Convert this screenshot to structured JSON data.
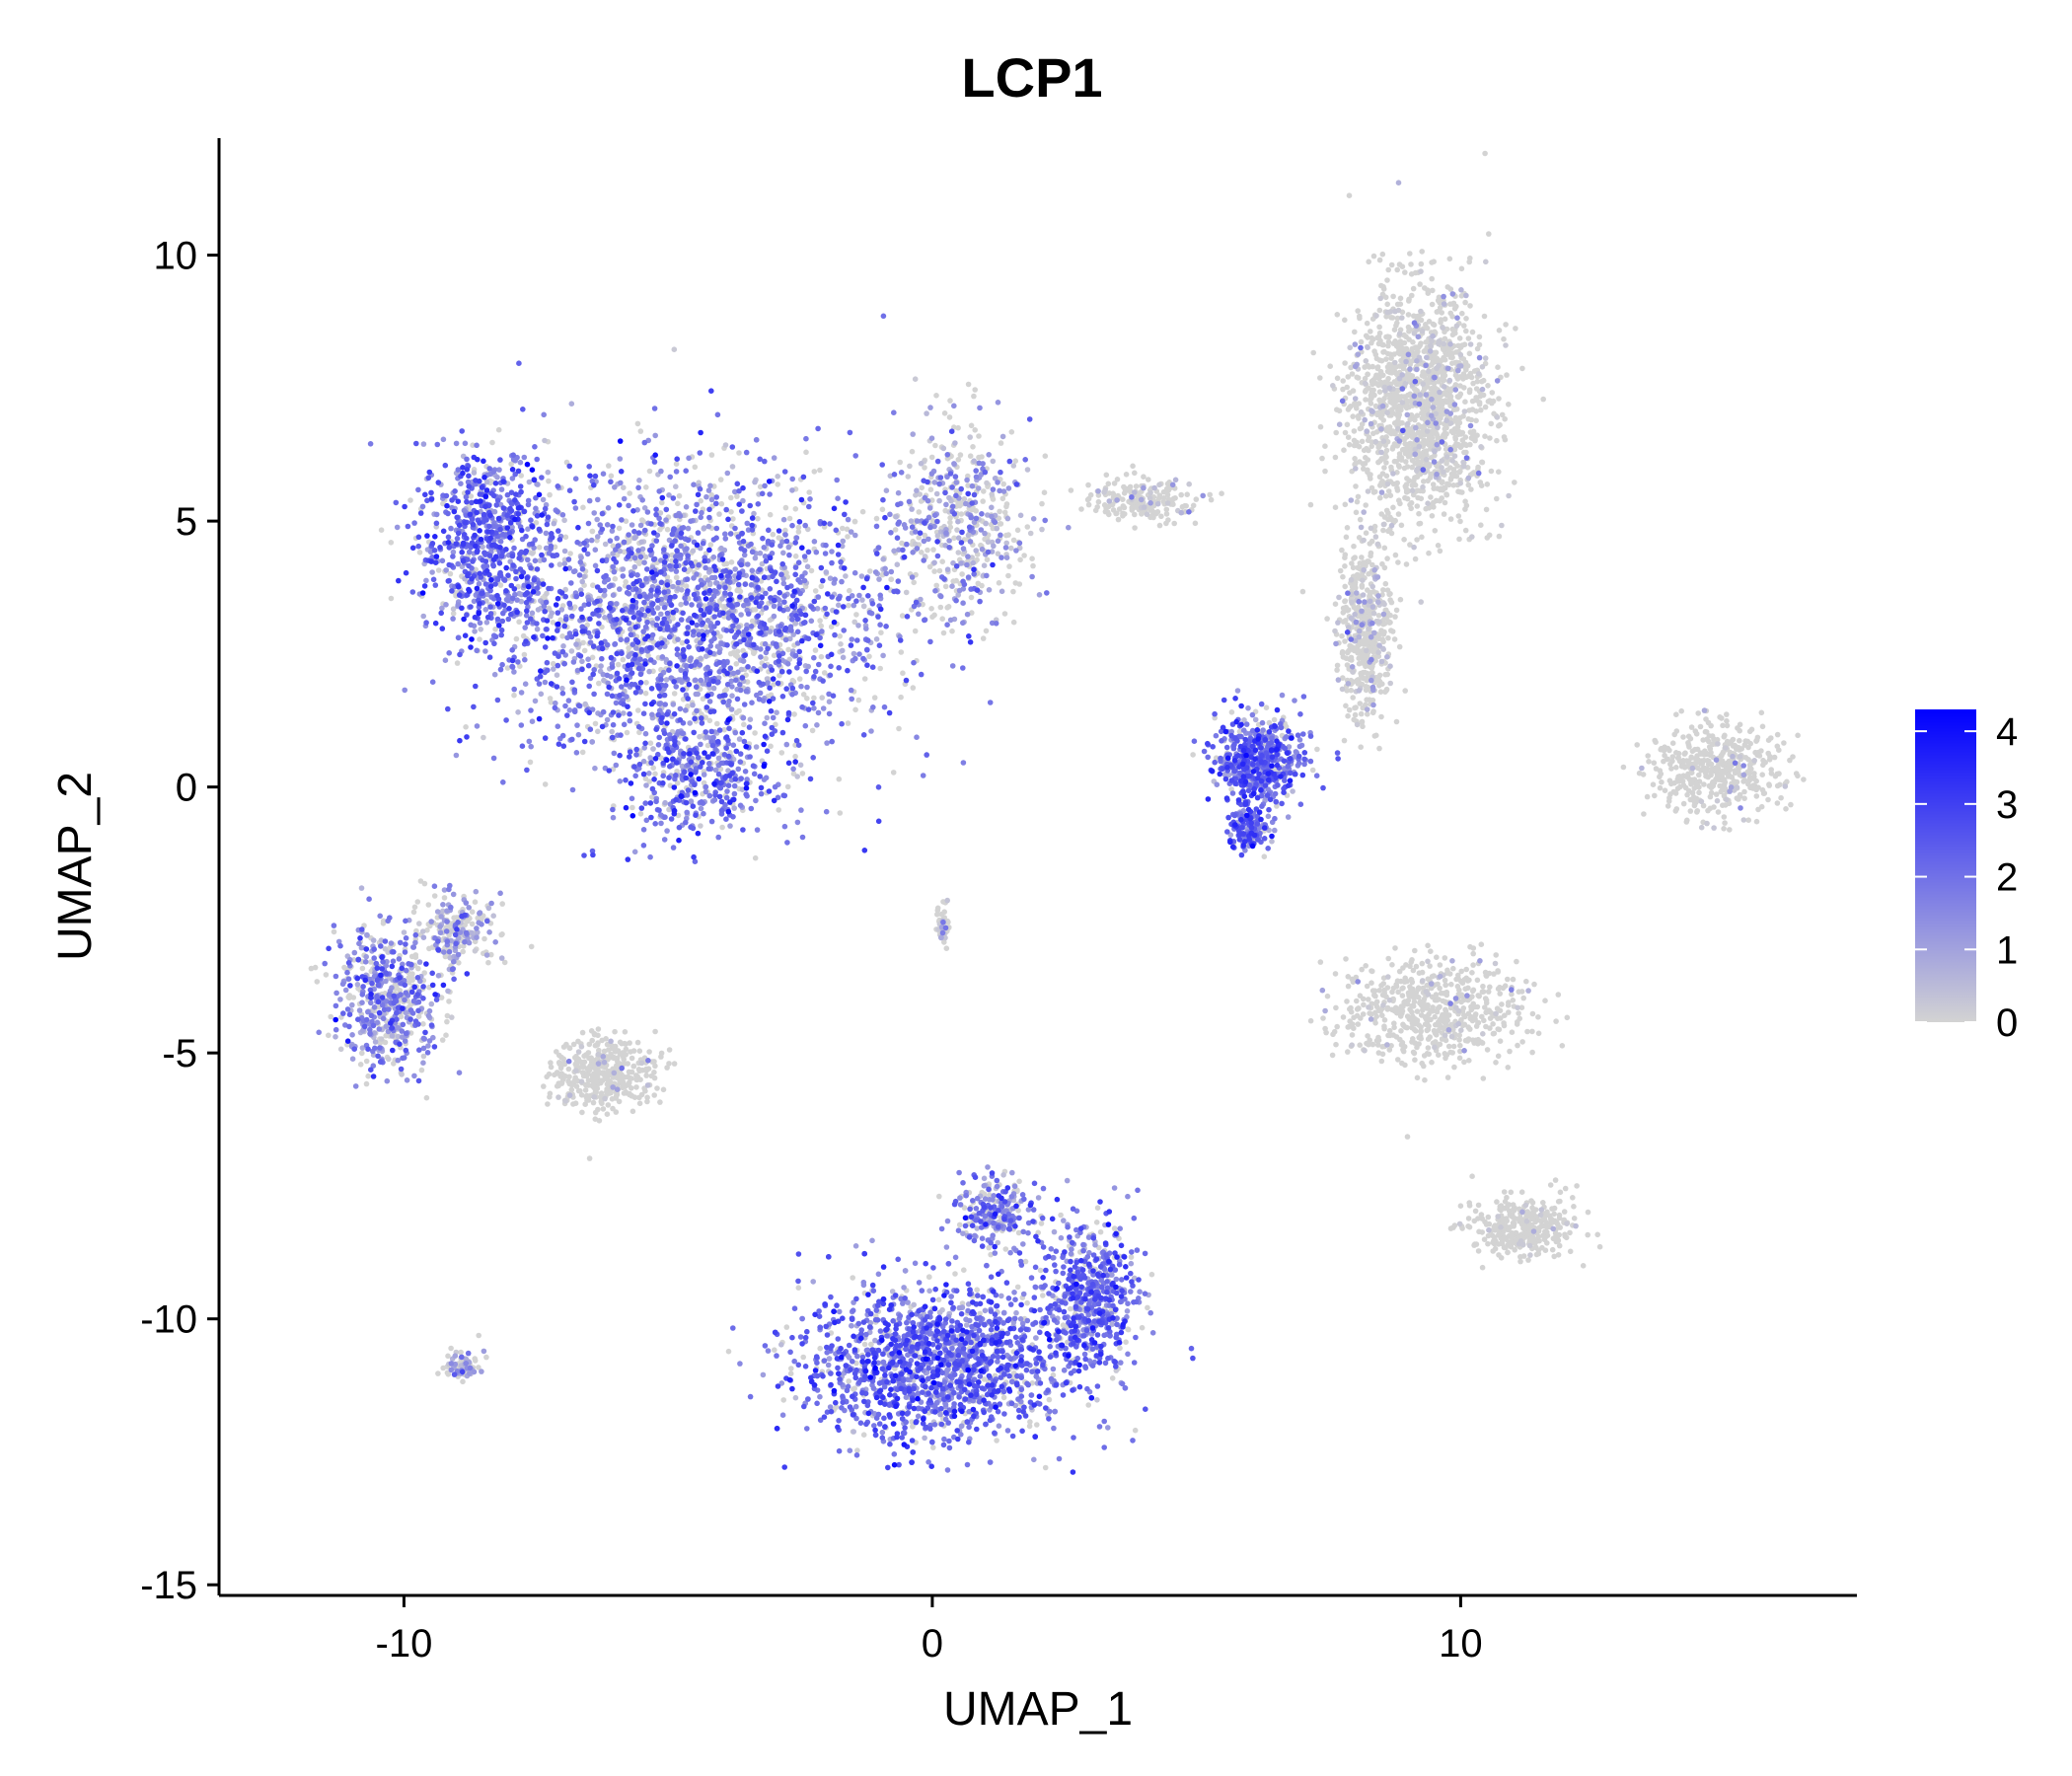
{
  "chart_data": {
    "type": "scatter",
    "title": "LCP1",
    "xlabel": "UMAP_1",
    "ylabel": "UMAP_2",
    "xlim": [
      -13.5,
      17.5
    ],
    "ylim": [
      -15.2,
      12.2
    ],
    "x_ticks": [
      -10,
      0,
      10
    ],
    "x_tick_labels": [
      "-10",
      "0",
      "10"
    ],
    "y_ticks": [
      10,
      5,
      0,
      -5,
      -10,
      -15
    ],
    "y_tick_labels": [
      "10",
      "5",
      "0",
      "-5",
      "-10",
      "-15"
    ],
    "grid": false,
    "legend": {
      "type": "colorbar",
      "placement": "right",
      "range": [
        0,
        4.3
      ],
      "ticks": [
        4,
        3,
        2,
        1,
        0
      ],
      "tick_labels": [
        "4",
        "3",
        "2",
        "1",
        "0"
      ],
      "low_color": "#d3d3d3",
      "high_color": "#0000ff"
    },
    "point_color_low": "#d3d3d3",
    "point_color_high": "#0000ff",
    "clusters": [
      {
        "name": "large upper-left cluster",
        "cx": -4.5,
        "cy": 3.2,
        "sx": 3.4,
        "sy": 2.4,
        "expr": 1.8,
        "n": 2600
      },
      {
        "name": "upper-left cluster left lobe",
        "cx": -8.4,
        "cy": 4.6,
        "sx": 1.2,
        "sy": 1.6,
        "expr": 2.2,
        "n": 700
      },
      {
        "name": "upper-left cluster lower tip",
        "cx": -4.4,
        "cy": 0.2,
        "sx": 1.3,
        "sy": 1.0,
        "expr": 2.0,
        "n": 400
      },
      {
        "name": "upper-left cluster right edge",
        "cx": 0.5,
        "cy": 5.0,
        "sx": 1.2,
        "sy": 1.6,
        "expr": 1.2,
        "n": 500
      },
      {
        "name": "upper-right tall cluster",
        "cx": 9.2,
        "cy": 7.2,
        "sx": 1.2,
        "sy": 2.0,
        "expr": 0.3,
        "n": 1500
      },
      {
        "name": "upper-right stalk",
        "cx": 8.2,
        "cy": 3.0,
        "sx": 0.45,
        "sy": 1.6,
        "expr": 0.4,
        "n": 500
      },
      {
        "name": "middle-right purple cluster",
        "cx": 6.2,
        "cy": 0.5,
        "sx": 0.75,
        "sy": 0.75,
        "expr": 2.1,
        "n": 550
      },
      {
        "name": "middle-right purple tail",
        "cx": 6.0,
        "cy": -0.8,
        "sx": 0.35,
        "sy": 0.4,
        "expr": 2.3,
        "n": 150
      },
      {
        "name": "small satellite near top",
        "cx": 4.0,
        "cy": 5.4,
        "sx": 0.9,
        "sy": 0.35,
        "expr": 0.3,
        "n": 200
      },
      {
        "name": "far-right crescent cluster",
        "cx": 14.8,
        "cy": 0.3,
        "sx": 1.1,
        "sy": 0.8,
        "expr": 0.1,
        "n": 450
      },
      {
        "name": "right-middle cluster",
        "cx": 9.5,
        "cy": -4.2,
        "sx": 1.6,
        "sy": 0.9,
        "expr": 0.15,
        "n": 600
      },
      {
        "name": "right-lower cluster",
        "cx": 11.2,
        "cy": -8.3,
        "sx": 0.9,
        "sy": 0.5,
        "expr": 0.1,
        "n": 350
      },
      {
        "name": "left-middle cluster",
        "cx": -10.3,
        "cy": -4.0,
        "sx": 0.9,
        "sy": 1.2,
        "expr": 1.6,
        "n": 550
      },
      {
        "name": "left-middle cluster upper arm",
        "cx": -9.0,
        "cy": -2.7,
        "sx": 0.6,
        "sy": 0.6,
        "expr": 1.2,
        "n": 200
      },
      {
        "name": "center-left grey cluster",
        "cx": -6.2,
        "cy": -5.4,
        "sx": 0.9,
        "sy": 0.6,
        "expr": 0.2,
        "n": 400
      },
      {
        "name": "large lower cluster",
        "cx": 0.2,
        "cy": -10.8,
        "sx": 2.4,
        "sy": 1.3,
        "expr": 2.1,
        "n": 1900
      },
      {
        "name": "lower cluster right lobe",
        "cx": 3.0,
        "cy": -9.5,
        "sx": 0.8,
        "sy": 1.2,
        "expr": 2.0,
        "n": 550
      },
      {
        "name": "lower cluster top spikes",
        "cx": 1.2,
        "cy": -8.0,
        "sx": 0.7,
        "sy": 0.6,
        "expr": 1.8,
        "n": 250
      },
      {
        "name": "small bottom-left cluster",
        "cx": -8.9,
        "cy": -10.9,
        "sx": 0.3,
        "sy": 0.25,
        "expr": 0.9,
        "n": 90
      },
      {
        "name": "thin center streak",
        "cx": 0.2,
        "cy": -2.6,
        "sx": 0.08,
        "sy": 0.35,
        "expr": 0.6,
        "n": 50
      }
    ]
  }
}
